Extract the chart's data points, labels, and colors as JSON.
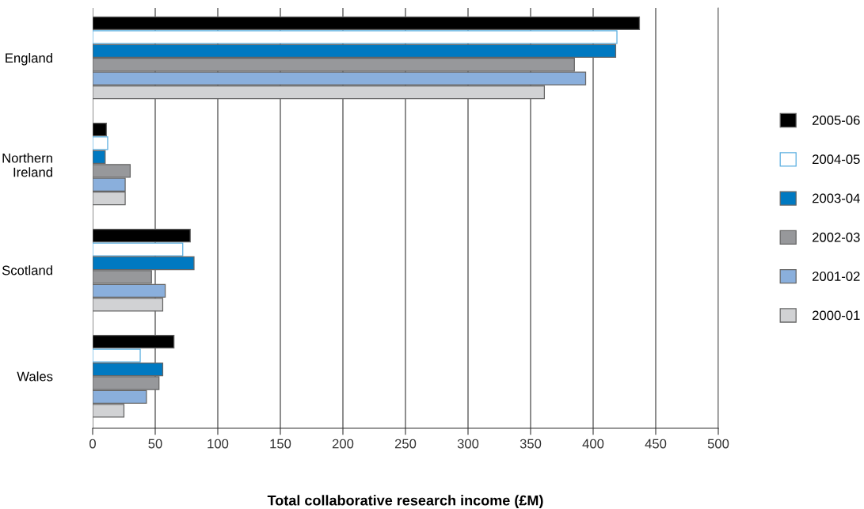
{
  "chart_data": {
    "type": "bar",
    "orientation": "horizontal",
    "categories": [
      "England",
      "Northern\nIreland",
      "Scotland",
      "Wales"
    ],
    "series": [
      {
        "name": "2005-06",
        "color": "#000000",
        "values": [
          437,
          11,
          78,
          65
        ]
      },
      {
        "name": "2004-05",
        "color": "#ffffff",
        "values": [
          419,
          12,
          72,
          38
        ]
      },
      {
        "name": "2003-04",
        "color": "#0079c1",
        "values": [
          418,
          10,
          81,
          56
        ]
      },
      {
        "name": "2002-03",
        "color": "#97989b",
        "values": [
          385,
          30,
          47,
          53
        ]
      },
      {
        "name": "2001-02",
        "color": "#8aafdc",
        "values": [
          394,
          26,
          58,
          43
        ]
      },
      {
        "name": "2000-01",
        "color": "#d1d2d4",
        "values": [
          361,
          26,
          56,
          25
        ]
      }
    ],
    "xlabel": "Total collaborative research income (£M)",
    "xlim": [
      0,
      500
    ],
    "xticks": [
      0,
      50,
      100,
      150,
      200,
      250,
      300,
      350,
      400,
      450,
      500
    ],
    "grid": "x",
    "legend": "right"
  }
}
